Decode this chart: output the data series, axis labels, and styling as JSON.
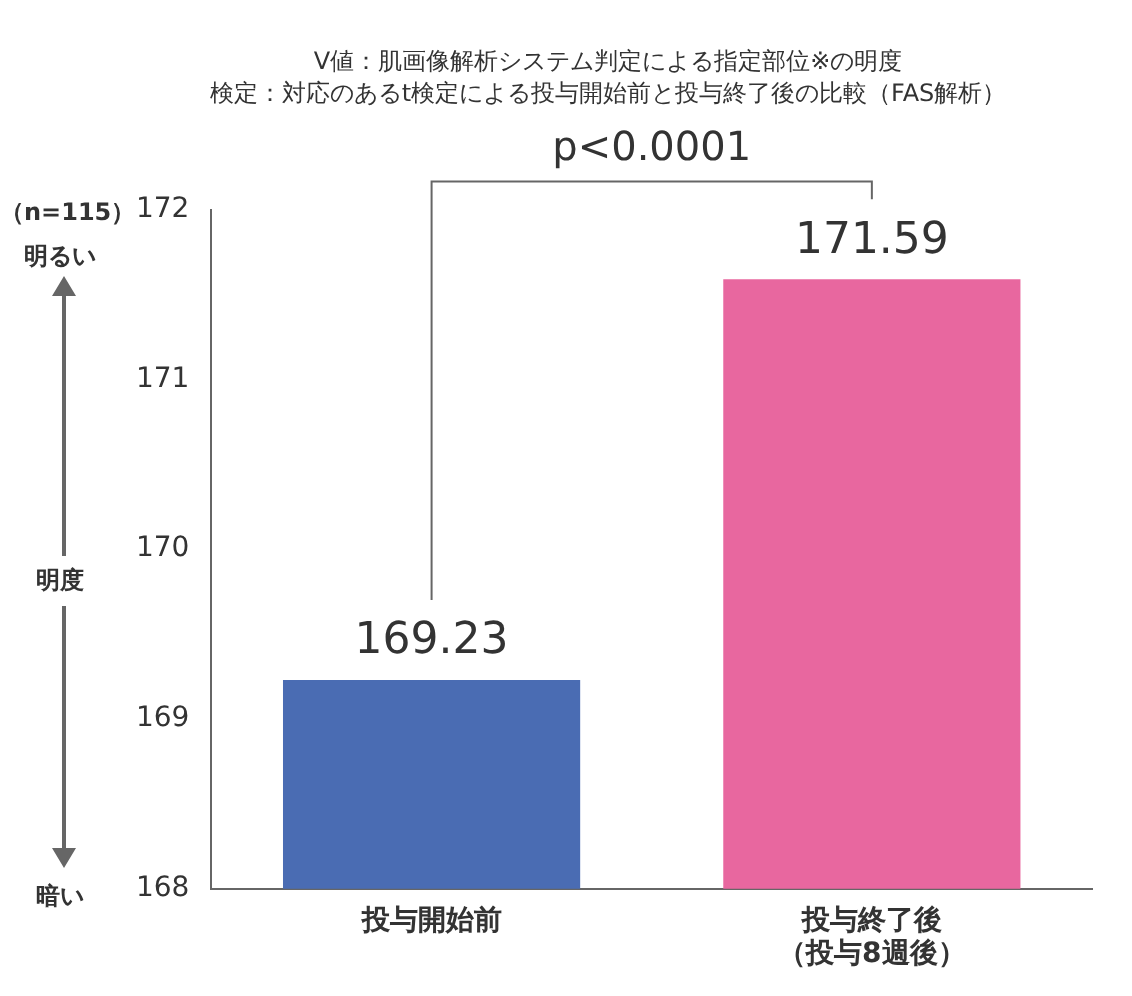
{
  "chart_data": {
    "type": "bar",
    "title": "V値：肌画像解析システム判定による指定部位※の明度",
    "subtitle": "検定：対応のあるt検定による投与開始前と投与終了後の比較（FAS解析）",
    "ylabel": "明度",
    "categories": [
      "投与開始前",
      "投与終了後（投与8週後）"
    ],
    "values": [
      169.23,
      171.59
    ],
    "colors": [
      "#4a6cb3",
      "#e8679f"
    ],
    "ylim": [
      168,
      172
    ],
    "yticks": [
      168,
      169,
      170,
      171,
      172
    ],
    "grid": false,
    "legend": false,
    "data_labels": true,
    "annotations": [
      "（n=115）",
      "明るい",
      "暗い",
      "p<0.0001"
    ]
  }
}
